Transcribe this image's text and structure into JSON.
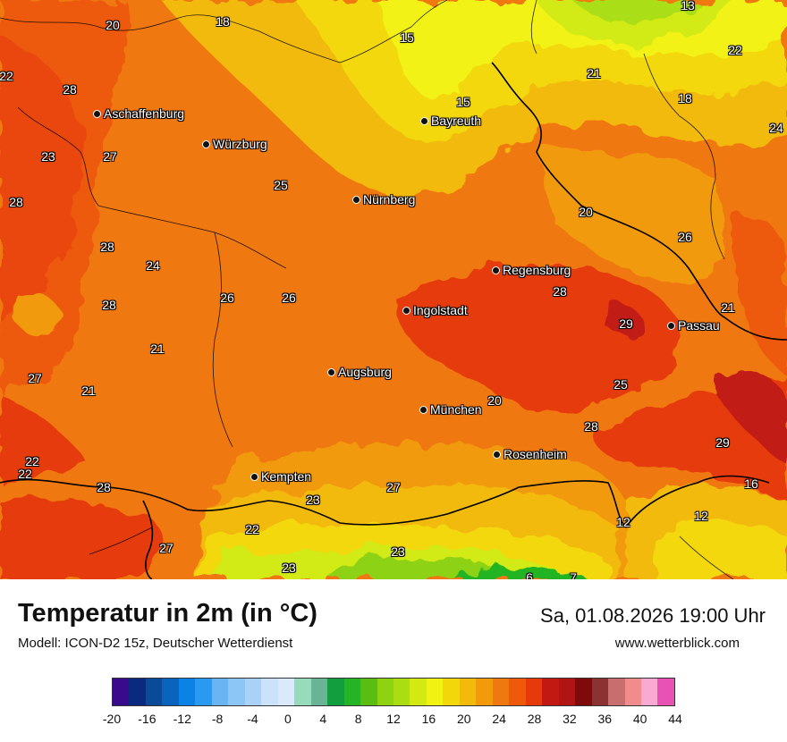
{
  "header": {
    "title": "Temperatur in 2m (in °C)",
    "model": "Modell: ICON-D2 15z, Deutscher Wetterdienst",
    "datetime": "Sa, 01.08.2026 19:00 Uhr",
    "site": "www.wetterblick.com"
  },
  "cities": [
    {
      "name": "Aschaffenburg"
    },
    {
      "name": "Würzburg"
    },
    {
      "name": "Bayreuth"
    },
    {
      "name": "Nürnberg"
    },
    {
      "name": "Regensburg"
    },
    {
      "name": "Ingolstadt"
    },
    {
      "name": "Passau"
    },
    {
      "name": "Augsburg"
    },
    {
      "name": "München"
    },
    {
      "name": "Rosenheim"
    },
    {
      "name": "Kempten"
    }
  ],
  "temperature_labels": [
    "20",
    "18",
    "15",
    "13",
    "22",
    "28",
    "15",
    "21",
    "22",
    "18",
    "23",
    "27",
    "24",
    "28",
    "25",
    "20",
    "28",
    "24",
    "26",
    "26",
    "28",
    "26",
    "21",
    "28",
    "29",
    "27",
    "21",
    "21",
    "20",
    "25",
    "27",
    "22",
    "28",
    "28",
    "29",
    "22",
    "16",
    "27",
    "23",
    "22",
    "12",
    "12",
    "23",
    "23",
    "6",
    "7"
  ],
  "legend": {
    "colors": [
      "#3a0a8c",
      "#0a2a80",
      "#0a4a96",
      "#0a64be",
      "#0a82e6",
      "#2a9af0",
      "#6ab4f4",
      "#8cc6f6",
      "#aad2f8",
      "#cae2fa",
      "#daeafc",
      "#96dcbc",
      "#6ab496",
      "#129e3e",
      "#24b424",
      "#5abe12",
      "#8ed212",
      "#aade12",
      "#d2ea12",
      "#f2f212",
      "#f2d80a",
      "#f2ba0a",
      "#f29a0a",
      "#f07810",
      "#ee5a0a",
      "#e63a0a",
      "#c21a12",
      "#b01414",
      "#7e0a0a",
      "#8c3232",
      "#c86e6e",
      "#f08c8c",
      "#f8aad2",
      "#e852b4"
    ],
    "ticks": [
      "-20",
      "-16",
      "-12",
      "-8",
      "-4",
      "0",
      "4",
      "8",
      "12",
      "16",
      "20",
      "24",
      "28",
      "32",
      "36",
      "40",
      "44"
    ]
  }
}
